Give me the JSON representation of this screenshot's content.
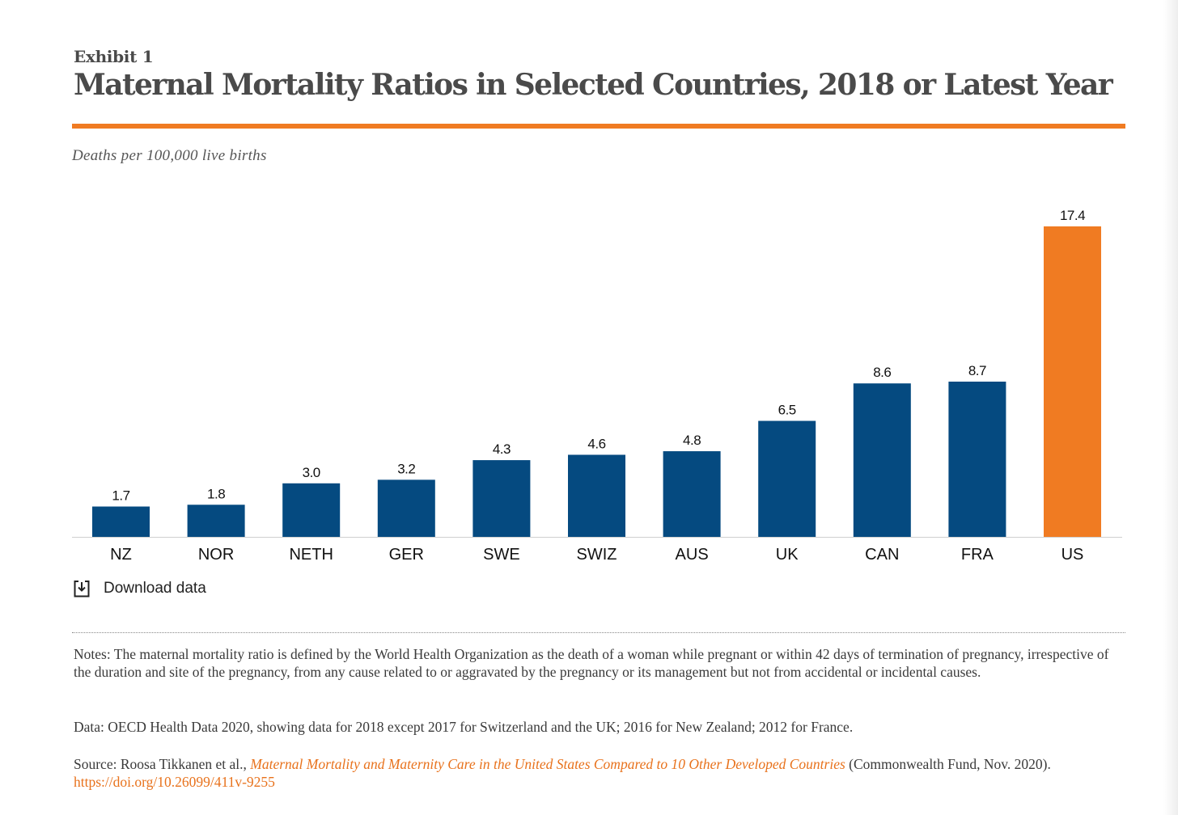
{
  "exhibit_label": "Exhibit 1",
  "title": "Maternal Mortality Ratios in Selected Countries, 2018 or Latest Year",
  "subtitle": "Deaths per 100,000 live births",
  "download_label": "Download data",
  "colors": {
    "bar": "#054a80",
    "highlight": "#f07b22",
    "rule": "#f07b22",
    "axis": "#d0d0d0"
  },
  "chart_data": {
    "type": "bar",
    "categories": [
      "NZ",
      "NOR",
      "NETH",
      "GER",
      "SWE",
      "SWIZ",
      "AUS",
      "UK",
      "CAN",
      "FRA",
      "US"
    ],
    "values": [
      1.7,
      1.8,
      3.0,
      3.2,
      4.3,
      4.6,
      4.8,
      6.5,
      8.6,
      8.7,
      17.4
    ],
    "value_labels": [
      "1.7",
      "1.8",
      "3.0",
      "3.2",
      "4.3",
      "4.6",
      "4.8",
      "6.5",
      "8.6",
      "8.7",
      "17.4"
    ],
    "highlight_category": "US",
    "title": "Maternal Mortality Ratios in Selected Countries, 2018 or Latest Year",
    "ylabel": "Deaths per 100,000 live births",
    "xlabel": "",
    "ylim": [
      0,
      17.4
    ],
    "grid": false,
    "legend": "none"
  },
  "notes": {
    "definition": "Notes: The maternal mortality ratio is defined by the World Health Organization as the death of a woman while pregnant or within 42 days of termination of pregnancy, irrespective of the duration and site of the pregnancy, from any cause related to or aggravated by the pregnancy or its management but not from accidental or incidental causes.",
    "data": "Data: OECD Health Data 2020, showing data for 2018 except 2017 for Switzerland and the UK; 2016 for New Zealand; 2012 for France.",
    "source_prefix": "Source: Roosa Tikkanen et al., ",
    "source_title": "Maternal Mortality and Maternity Care in the United States Compared to 10 Other Developed Countries",
    "source_suffix": " (Commonwealth Fund, Nov. 2020). ",
    "source_link": "https://doi.org/10.26099/411v-9255"
  }
}
